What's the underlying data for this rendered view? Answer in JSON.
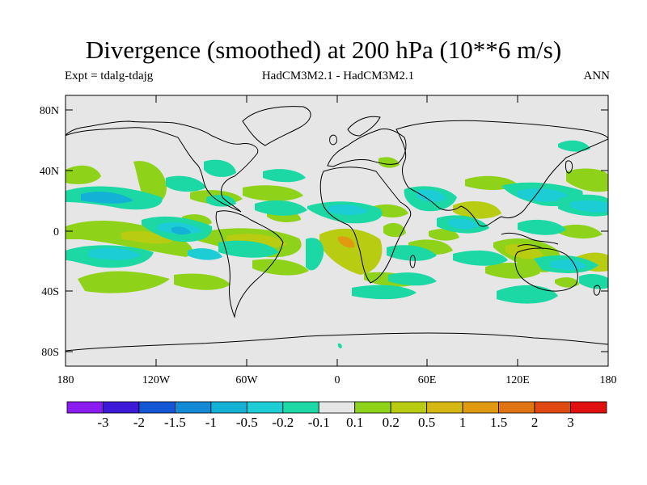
{
  "header": {
    "title": "Divergence (smoothed) at 200 hPa (10**6 m/s)",
    "experiment": "Expt = tdalg-tdajg",
    "models": "HadCM3M2.1 - HadCM3M2.1",
    "season": "ANN"
  },
  "map": {
    "lat_range": [
      -90,
      90
    ],
    "lon_range": [
      -180,
      180
    ],
    "lat_ticks": [
      "80N",
      "40N",
      "0",
      "40S",
      "80S"
    ],
    "lon_ticks": [
      "180",
      "120W",
      "60W",
      "0",
      "60E",
      "120E",
      "180"
    ],
    "background_color": "#e6e6e6"
  },
  "colorbar": {
    "colors": [
      "#8a1cf0",
      "#3c1ad8",
      "#1456d6",
      "#1489d6",
      "#14b1d6",
      "#1ccdd6",
      "#1bd8a4",
      "#e6e6e6",
      "#8fd21a",
      "#b8cc12",
      "#d6b612",
      "#e09a12",
      "#e07412",
      "#e04a12",
      "#e01010"
    ],
    "labels": [
      "-3",
      "-2",
      "-1.5",
      "-1",
      "-0.5",
      "-0.2",
      "-0.1",
      "0.1",
      "0.2",
      "0.5",
      "1",
      "1.5",
      "2",
      "3"
    ]
  }
}
